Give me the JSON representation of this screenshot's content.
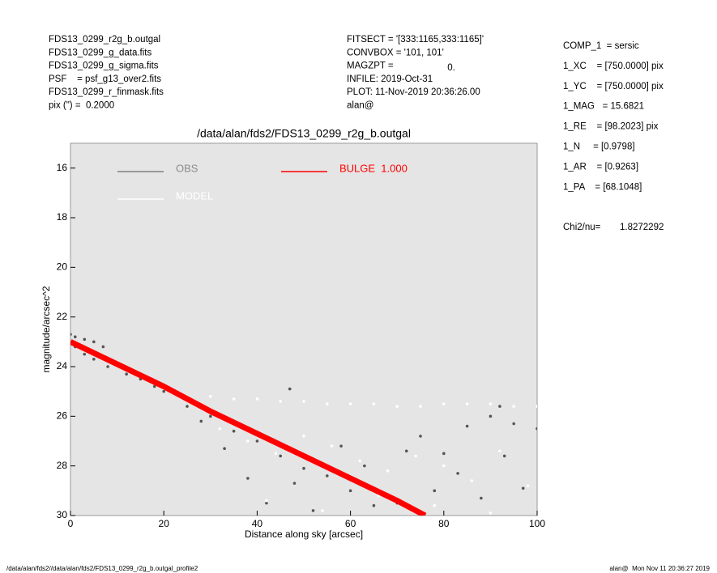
{
  "header": {
    "left": [
      "FDS13_0299_r2g_b.outgal",
      "FDS13_0299_g_data.fits",
      "FDS13_0299_g_sigma.fits",
      "PSF    = psf_g13_over2.fits",
      "FDS13_0299_r_finmask.fits",
      "pix (\") =  0.2000"
    ],
    "middle": [
      "FITSECT = '[333:1165,333:1165]'",
      "CONVBOX = '101, 101'",
      "MAGZPT =",
      "INFILE: 2019-Oct-31",
      "PLOT: 11-Nov-2019 20:36:26.00",
      "alan@"
    ],
    "magzpt_value": "0.",
    "right": [
      "COMP_1  = sersic",
      "1_XC    = [750.0000] pix",
      "1_YC    = [750.0000] pix",
      "1_MAG   = 15.6821",
      "1_RE    = [98.2023] pix",
      "1_N     = [0.9798]",
      "1_AR    = [0.9263]",
      "1_PA    = [68.1048]"
    ],
    "chi2_label": "Chi2/nu=",
    "chi2_value": "1.8272292"
  },
  "footer": {
    "left": "/data/alan/fds2//data/alan/fds2/FDS13_0299_r2g_b.outgal_profile2",
    "right": "alan@  Mon Nov 11 20:36:27 2019"
  },
  "chart_data": {
    "type": "scatter",
    "title": "/data/alan/fds2/FDS13_0299_r2g_b.outgal",
    "xlabel": "Distance along sky [arcsec]",
    "ylabel": "magnitude/arcsec^2",
    "xlim": [
      0,
      100
    ],
    "xticks": [
      0,
      20,
      40,
      60,
      80,
      100
    ],
    "ylim": [
      30,
      15
    ],
    "yticks": [
      16,
      18,
      20,
      22,
      24,
      26,
      28,
      30
    ],
    "series": [
      {
        "name": "OBS",
        "color": "#555555",
        "mode": "points",
        "x": [
          0,
          1,
          3,
          5,
          7,
          1,
          3,
          5,
          8,
          12,
          15,
          18,
          20,
          25,
          28,
          30,
          33,
          35,
          38,
          40,
          42,
          45,
          48,
          50,
          52,
          55,
          58,
          60,
          63,
          65,
          70,
          72,
          75,
          78,
          80,
          83,
          85,
          88,
          90,
          93,
          95,
          97,
          100,
          47,
          92
        ],
        "values": [
          22.7,
          22.8,
          22.9,
          23.0,
          23.2,
          23.2,
          23.5,
          23.7,
          24.0,
          24.3,
          24.5,
          24.8,
          25.0,
          25.6,
          26.2,
          26.0,
          27.3,
          26.6,
          28.5,
          27.0,
          29.5,
          27.6,
          28.7,
          28.1,
          29.8,
          28.4,
          27.2,
          29.0,
          28.0,
          29.6,
          29.5,
          27.4,
          26.8,
          29.0,
          27.5,
          28.3,
          26.4,
          29.3,
          26.0,
          27.6,
          26.3,
          28.9,
          26.5,
          24.9,
          25.6
        ]
      },
      {
        "name": "MODEL",
        "color": "#ffffff",
        "mode": "points",
        "x": [
          25,
          30,
          35,
          40,
          45,
          50,
          55,
          60,
          65,
          70,
          75,
          80,
          85,
          90,
          95,
          100,
          32,
          38,
          44,
          50,
          56,
          62,
          68,
          74,
          80,
          86,
          92,
          98,
          42,
          54,
          66,
          78,
          90
        ],
        "values": [
          25.3,
          25.2,
          25.3,
          25.3,
          25.4,
          25.4,
          25.5,
          25.5,
          25.5,
          25.6,
          25.6,
          25.5,
          25.5,
          25.5,
          25.6,
          25.6,
          26.5,
          27.0,
          27.5,
          26.8,
          27.2,
          27.8,
          28.2,
          27.6,
          28.0,
          28.6,
          27.4,
          28.8,
          29.4,
          29.8,
          29.2,
          29.6,
          29.9
        ]
      },
      {
        "name": "BULGE  1.000",
        "color": "#ff0000",
        "mode": "line",
        "x": [
          0,
          10,
          20,
          30,
          40,
          50,
          60,
          70,
          76
        ],
        "values": [
          23.0,
          23.9,
          24.8,
          25.8,
          26.7,
          27.6,
          28.5,
          29.4,
          30.0
        ]
      }
    ]
  }
}
